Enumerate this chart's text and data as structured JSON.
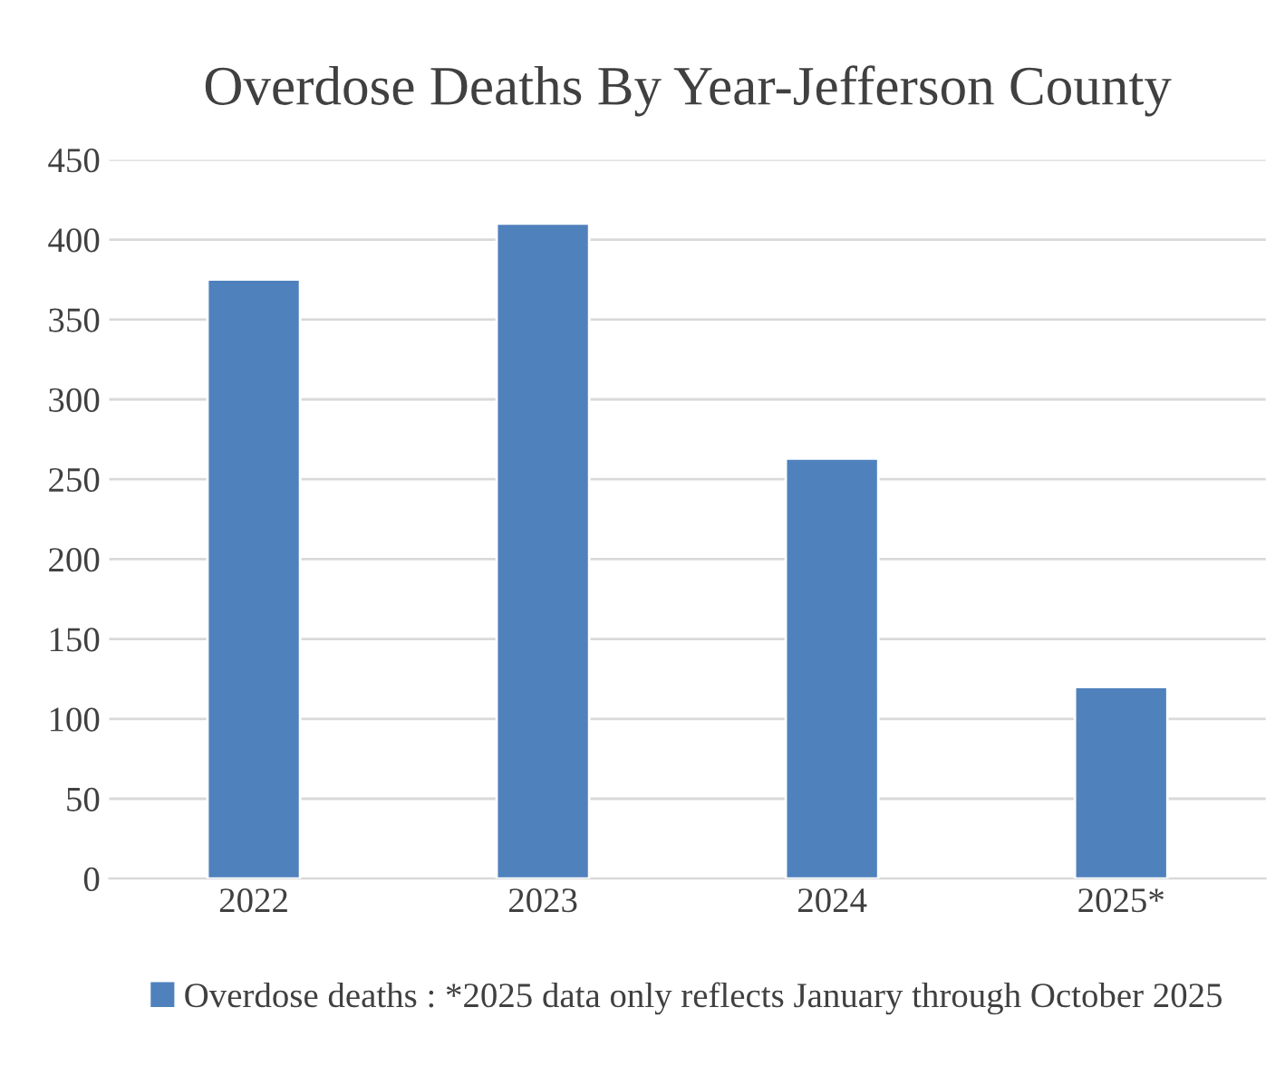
{
  "chart_data": {
    "type": "bar",
    "title": "Overdose Deaths By Year-Jefferson County",
    "categories": [
      "2022",
      "2023",
      "2024",
      "2025*"
    ],
    "series": [
      {
        "name": "Overdose deaths : *2025 data only reflects January through October 2025",
        "color": "#4f81bd",
        "values": [
          375,
          410,
          263,
          120
        ]
      }
    ],
    "ylim": [
      0,
      450
    ],
    "yticks": [
      0,
      50,
      100,
      150,
      200,
      250,
      300,
      350,
      400,
      450
    ],
    "grid": "y",
    "legend": "bottom"
  }
}
